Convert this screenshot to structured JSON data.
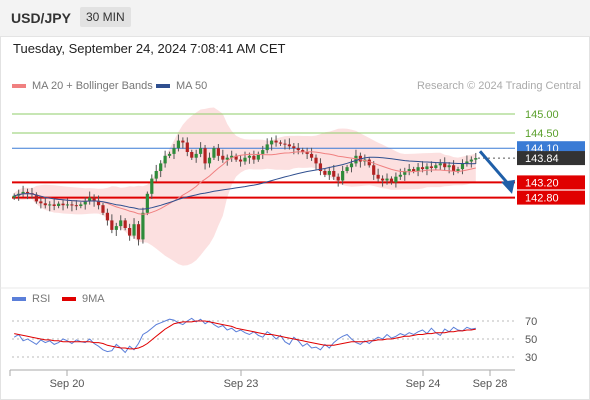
{
  "header": {
    "symbol": "USD/JPY",
    "timeframe": "30 MIN"
  },
  "date_line": "Tuesday, September 24, 2024 7:08:41 AM CET",
  "legend": {
    "ma20": {
      "label": "MA 20 + Bollinger Bands",
      "color": "#f08080"
    },
    "ma50": {
      "label": "MA 50",
      "color": "#2f4f8f"
    },
    "copyright": "Research © 2024 Trading Central"
  },
  "rsi_legend": {
    "rsi": {
      "label": "RSI",
      "color": "#5b7fd9"
    },
    "ma9": {
      "label": "9MA",
      "color": "#e00000"
    }
  },
  "chart_data": [
    {
      "type": "candlestick",
      "ylim": [
        140.5,
        145.5
      ],
      "levels": [
        {
          "value": 145.0,
          "label": "145.00",
          "kind": "target"
        },
        {
          "value": 144.5,
          "label": "144.50",
          "kind": "target"
        },
        {
          "value": 144.1,
          "label": "144.10",
          "kind": "pivot"
        },
        {
          "value": 143.84,
          "label": "143.84",
          "kind": "last"
        },
        {
          "value": 143.2,
          "label": "143.20",
          "kind": "support"
        },
        {
          "value": 142.8,
          "label": "142.80",
          "kind": "support"
        }
      ],
      "arrow": {
        "from": 144.02,
        "to": 142.95
      },
      "x_ticks": [
        "Sep 20",
        "Sep 23",
        "Sep 24",
        "Sep 28"
      ],
      "closes": [
        142.85,
        142.9,
        142.95,
        142.92,
        142.88,
        142.7,
        142.65,
        142.6,
        142.62,
        142.58,
        142.64,
        142.6,
        142.62,
        142.6,
        142.58,
        142.62,
        142.7,
        142.8,
        142.72,
        142.6,
        142.4,
        142.2,
        141.95,
        142.05,
        142.2,
        142.0,
        141.8,
        142.1,
        141.7,
        142.4,
        142.9,
        143.3,
        143.5,
        143.7,
        143.9,
        143.95,
        144.1,
        144.3,
        144.25,
        144.0,
        143.85,
        143.95,
        144.1,
        143.7,
        143.85,
        144.1,
        143.9,
        143.8,
        143.85,
        143.9,
        143.8,
        143.75,
        143.85,
        143.9,
        143.8,
        143.95,
        144.05,
        144.2,
        144.3,
        144.25,
        144.22,
        144.2,
        144.15,
        144.1,
        144.05,
        144.0,
        143.95,
        143.85,
        143.7,
        143.5,
        143.4,
        143.5,
        143.35,
        143.25,
        143.5,
        143.6,
        143.7,
        143.9,
        143.75,
        143.8,
        143.65,
        143.4,
        143.3,
        143.25,
        143.3,
        143.2,
        143.35,
        143.4,
        143.5,
        143.55,
        143.5,
        143.6,
        143.55,
        143.62,
        143.58,
        143.65,
        143.7,
        143.6,
        143.65,
        143.5,
        143.55,
        143.7,
        143.75,
        143.8,
        143.84
      ]
    },
    {
      "type": "line",
      "title": "RSI",
      "ylim": [
        20,
        80
      ],
      "y_ticks": [
        70,
        50,
        30
      ],
      "series": [
        {
          "name": "RSI",
          "color": "#5b7fd9",
          "values": [
            52,
            55,
            48,
            50,
            47,
            44,
            49,
            46,
            48,
            44,
            46,
            50,
            48,
            45,
            49,
            47,
            46,
            50,
            45,
            42,
            38,
            36,
            37,
            44,
            40,
            35,
            42,
            38,
            45,
            55,
            58,
            62,
            66,
            68,
            70,
            72,
            71,
            68,
            66,
            70,
            73,
            69,
            72,
            67,
            70,
            66,
            63,
            65,
            60,
            62,
            58,
            60,
            57,
            55,
            58,
            54,
            52,
            58,
            55,
            50,
            54,
            47,
            44,
            52,
            48,
            42,
            45,
            40,
            41,
            38,
            44,
            40,
            46,
            50,
            53,
            55,
            50,
            46,
            44,
            48,
            45,
            49,
            52,
            50,
            55,
            51,
            53,
            56,
            54,
            57,
            55,
            58,
            60,
            56,
            62,
            57,
            54,
            61,
            58,
            63,
            60,
            59,
            63,
            61,
            62
          ]
        },
        {
          "name": "9MA",
          "color": "#e00000",
          "values": [
            56,
            55,
            54,
            53,
            52,
            51,
            50,
            49,
            49,
            48,
            48,
            47,
            47,
            47,
            47,
            47,
            47,
            47,
            46,
            46,
            45,
            43,
            42,
            41,
            40,
            40,
            39,
            39,
            40,
            42,
            45,
            49,
            53,
            57,
            61,
            64,
            67,
            68,
            69,
            69,
            69,
            70,
            70,
            70,
            69,
            68,
            67,
            66,
            65,
            64,
            62,
            61,
            60,
            59,
            58,
            57,
            56,
            55,
            55,
            54,
            53,
            52,
            51,
            50,
            49,
            48,
            47,
            46,
            45,
            44,
            43,
            43,
            43,
            44,
            45,
            46,
            47,
            47,
            47,
            47,
            48,
            48,
            49,
            49,
            50,
            50,
            51,
            52,
            53,
            53,
            54,
            55,
            55,
            56,
            56,
            57,
            57,
            57,
            58,
            58,
            59,
            59,
            60,
            60,
            61
          ]
        }
      ]
    }
  ]
}
